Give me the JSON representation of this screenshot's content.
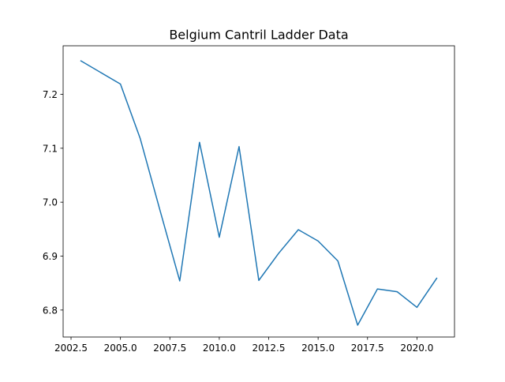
{
  "chart_data": {
    "type": "line",
    "title": "Belgium Cantril Ladder Data",
    "xlabel": "",
    "ylabel": "",
    "xlim": [
      2002.1,
      2021.9
    ],
    "ylim": [
      6.75,
      7.29
    ],
    "xticks": [
      2002.5,
      2005.0,
      2007.5,
      2010.0,
      2012.5,
      2015.0,
      2017.5,
      2020.0
    ],
    "xtick_labels": [
      "2002.5",
      "2005.0",
      "2007.5",
      "2010.0",
      "2012.5",
      "2015.0",
      "2017.5",
      "2020.0"
    ],
    "yticks": [
      6.8,
      6.9,
      7.0,
      7.1,
      7.2
    ],
    "ytick_labels": [
      "6.8",
      "6.9",
      "7.0",
      "7.1",
      "7.2"
    ],
    "grid": false,
    "legend": "none",
    "series": [
      {
        "color": "#1f77b4",
        "x": [
          2003,
          2005,
          2006,
          2007,
          2008,
          2009,
          2010,
          2011,
          2012,
          2013,
          2014,
          2015,
          2016,
          2017,
          2018,
          2019,
          2020,
          2021
        ],
        "y": [
          7.262,
          7.219,
          7.118,
          6.985,
          6.854,
          7.111,
          6.935,
          7.103,
          6.855,
          6.905,
          6.949,
          6.928,
          6.891,
          6.772,
          6.839,
          6.834,
          6.805,
          6.859
        ]
      }
    ]
  }
}
